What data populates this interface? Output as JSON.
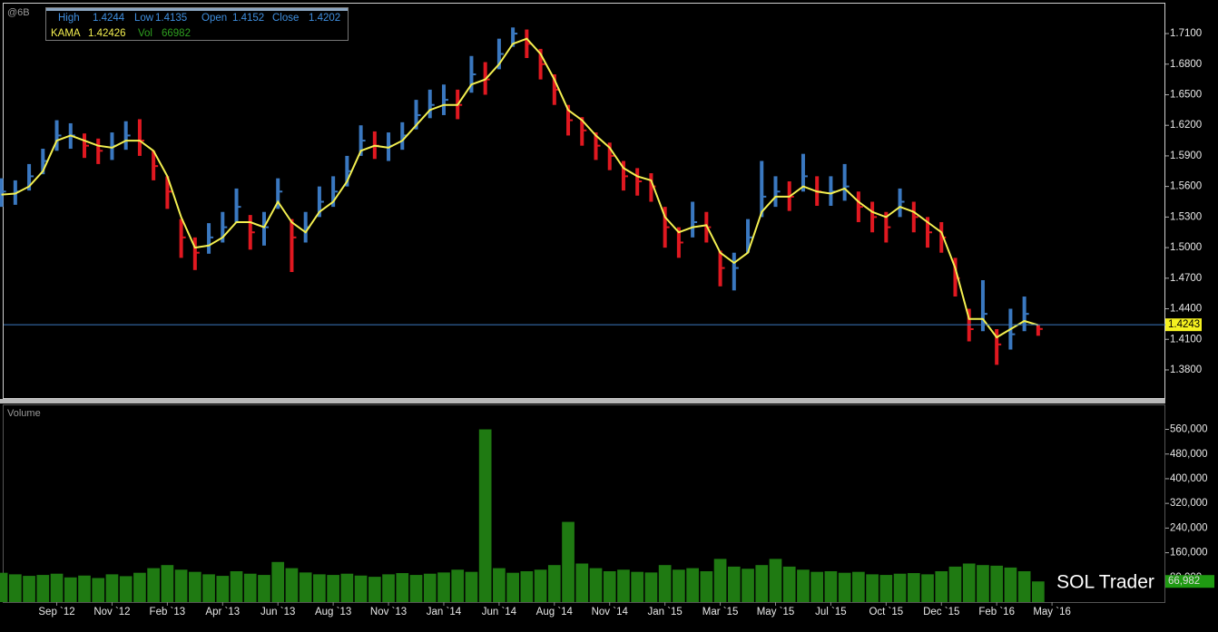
{
  "chart_data": {
    "type": "ohlc",
    "symbol": "@6B",
    "categories": [
      null,
      null,
      null,
      null,
      "Sep `12",
      null,
      null,
      null,
      "Nov `12",
      null,
      null,
      null,
      "Feb `13",
      null,
      null,
      null,
      "Apr `13",
      null,
      null,
      null,
      "Jun `13",
      null,
      null,
      null,
      "Aug `13",
      null,
      null,
      null,
      "Nov `13",
      null,
      null,
      null,
      "Jan `14",
      null,
      null,
      null,
      "Jun `14",
      null,
      null,
      null,
      "Aug `14",
      null,
      null,
      null,
      "Nov `14",
      null,
      null,
      null,
      "Jan `15",
      null,
      null,
      null,
      "Mar `15",
      null,
      null,
      null,
      "May `15",
      null,
      null,
      null,
      "Jul `15",
      null,
      null,
      null,
      "Oct `15",
      null,
      null,
      null,
      "Dec `15",
      null,
      null,
      null,
      "Feb `16",
      null,
      null,
      null,
      "May `16"
    ],
    "high": [
      1.568,
      1.566,
      1.582,
      1.597,
      1.625,
      1.622,
      1.612,
      1.607,
      1.613,
      1.624,
      1.626,
      1.595,
      1.57,
      1.528,
      1.51,
      1.524,
      1.535,
      1.558,
      1.532,
      1.535,
      1.568,
      1.528,
      1.535,
      1.56,
      1.57,
      1.59,
      1.62,
      1.614,
      1.613,
      1.623,
      1.645,
      1.655,
      1.66,
      1.655,
      1.688,
      1.682,
      1.705,
      1.716,
      1.714,
      1.695,
      1.67,
      1.64,
      1.628,
      1.613,
      1.603,
      1.585,
      1.578,
      1.573,
      1.54,
      1.52,
      1.545,
      1.535,
      1.497,
      1.495,
      1.528,
      1.585,
      1.57,
      1.565,
      1.592,
      1.57,
      1.57,
      1.582,
      1.555,
      1.545,
      1.535,
      1.558,
      1.545,
      1.53,
      1.525,
      1.49,
      1.44,
      1.468,
      1.42,
      1.44,
      1.452,
      1.4244,
      null
    ],
    "low": [
      1.54,
      1.542,
      1.556,
      1.572,
      1.595,
      1.597,
      1.588,
      1.582,
      1.586,
      1.596,
      1.59,
      1.566,
      1.538,
      1.49,
      1.478,
      1.494,
      1.505,
      1.524,
      1.498,
      1.502,
      1.538,
      1.476,
      1.505,
      1.53,
      1.54,
      1.56,
      1.59,
      1.587,
      1.585,
      1.596,
      1.616,
      1.627,
      1.63,
      1.626,
      1.652,
      1.65,
      1.675,
      1.697,
      1.686,
      1.665,
      1.64,
      1.61,
      1.6,
      1.586,
      1.576,
      1.556,
      1.551,
      1.545,
      1.5,
      1.49,
      1.51,
      1.505,
      1.462,
      1.458,
      1.495,
      1.53,
      1.54,
      1.536,
      1.555,
      1.541,
      1.541,
      1.546,
      1.525,
      1.515,
      1.505,
      1.53,
      1.515,
      1.5,
      1.495,
      1.452,
      1.408,
      1.418,
      1.385,
      1.4,
      1.418,
      1.4135,
      null
    ],
    "close": [
      1.555,
      1.555,
      1.57,
      1.585,
      1.61,
      1.61,
      1.6,
      1.595,
      1.6,
      1.61,
      1.605,
      1.58,
      1.555,
      1.51,
      1.495,
      1.51,
      1.52,
      1.54,
      1.515,
      1.52,
      1.555,
      1.51,
      1.52,
      1.545,
      1.555,
      1.575,
      1.605,
      1.6,
      1.6,
      1.61,
      1.63,
      1.64,
      1.645,
      1.64,
      1.67,
      1.665,
      1.69,
      1.71,
      1.7,
      1.68,
      1.655,
      1.625,
      1.615,
      1.6,
      1.59,
      1.57,
      1.565,
      1.56,
      1.52,
      1.505,
      1.525,
      1.52,
      1.48,
      1.48,
      1.51,
      1.55,
      1.555,
      1.55,
      1.57,
      1.555,
      1.555,
      1.56,
      1.54,
      1.53,
      1.52,
      1.545,
      1.53,
      1.515,
      1.51,
      1.47,
      1.42,
      1.435,
      1.405,
      1.415,
      1.435,
      1.4202,
      null
    ],
    "up_color": "#3a78c0",
    "down_color": "#e01820",
    "series": [
      {
        "name": "KAMA",
        "color": "#f4f050",
        "values": [
          1.552,
          1.553,
          1.56,
          1.575,
          1.605,
          1.61,
          1.605,
          1.6,
          1.598,
          1.605,
          1.605,
          1.595,
          1.57,
          1.53,
          1.5,
          1.502,
          1.51,
          1.525,
          1.525,
          1.52,
          1.545,
          1.525,
          1.515,
          1.535,
          1.545,
          1.565,
          1.595,
          1.6,
          1.598,
          1.605,
          1.62,
          1.635,
          1.64,
          1.64,
          1.66,
          1.665,
          1.68,
          1.7,
          1.705,
          1.69,
          1.665,
          1.635,
          1.625,
          1.61,
          1.598,
          1.578,
          1.57,
          1.566,
          1.53,
          1.515,
          1.52,
          1.522,
          1.495,
          1.485,
          1.495,
          1.535,
          1.55,
          1.55,
          1.56,
          1.555,
          1.553,
          1.558,
          1.545,
          1.535,
          1.53,
          1.54,
          1.535,
          1.525,
          1.515,
          1.48,
          1.43,
          1.43,
          1.412,
          1.42,
          1.428,
          1.424,
          null
        ]
      }
    ],
    "ylim": [
      1.3515,
      1.7385
    ],
    "yticks": [
      {
        "value": 1.38,
        "label": "1.3800"
      },
      {
        "value": 1.41,
        "label": "1.4100"
      },
      {
        "value": 1.44,
        "label": "1.4400"
      },
      {
        "value": 1.47,
        "label": "1.4700"
      },
      {
        "value": 1.5,
        "label": "1.5000"
      },
      {
        "value": 1.53,
        "label": "1.5300"
      },
      {
        "value": 1.56,
        "label": "1.5600"
      },
      {
        "value": 1.59,
        "label": "1.5900"
      },
      {
        "value": 1.62,
        "label": "1.6200"
      },
      {
        "value": 1.65,
        "label": "1.6500"
      },
      {
        "value": 1.68,
        "label": "1.6800"
      },
      {
        "value": 1.71,
        "label": "1.7100"
      }
    ],
    "last_price": 1.4243,
    "legend": [
      {
        "label": "High",
        "value": 1.4244
      },
      {
        "label": "Low",
        "value": 1.4135
      },
      {
        "label": "Open",
        "value": 1.4152
      },
      {
        "label": "Close",
        "value": 1.4202
      },
      {
        "label": "KAMA",
        "value": 1.42426
      },
      {
        "label": "Vol",
        "value": 66982
      }
    ],
    "volume": {
      "type": "bar",
      "title": "Volume",
      "color": "#1f7a12",
      "values": [
        95000,
        90000,
        85000,
        88000,
        92000,
        80000,
        86000,
        78000,
        90000,
        84000,
        95000,
        110000,
        120000,
        105000,
        98000,
        90000,
        85000,
        100000,
        92000,
        88000,
        130000,
        110000,
        96000,
        90000,
        88000,
        92000,
        86000,
        82000,
        90000,
        94000,
        88000,
        92000,
        96000,
        105000,
        98000,
        560000,
        110000,
        95000,
        100000,
        105000,
        120000,
        260000,
        125000,
        110000,
        100000,
        105000,
        98000,
        96000,
        120000,
        105000,
        110000,
        100000,
        140000,
        115000,
        108000,
        120000,
        140000,
        115000,
        105000,
        98000,
        100000,
        95000,
        98000,
        90000,
        88000,
        92000,
        94000,
        90000,
        100000,
        115000,
        125000,
        120000,
        118000,
        112000,
        100000,
        66982,
        null
      ],
      "ylim": [
        0,
        638000
      ],
      "yticks": [
        {
          "value": 80000,
          "label": "80,000"
        },
        {
          "value": 160000,
          "label": "160,000"
        },
        {
          "value": 240000,
          "label": "240,000"
        },
        {
          "value": 320000,
          "label": "320,000"
        },
        {
          "value": 400000,
          "label": "400,000"
        },
        {
          "value": 480000,
          "label": "480,000"
        },
        {
          "value": 560000,
          "label": "560,000"
        }
      ],
      "last": {
        "value": 66982,
        "label": "66,982"
      }
    },
    "watermark": "SOL Trader"
  }
}
